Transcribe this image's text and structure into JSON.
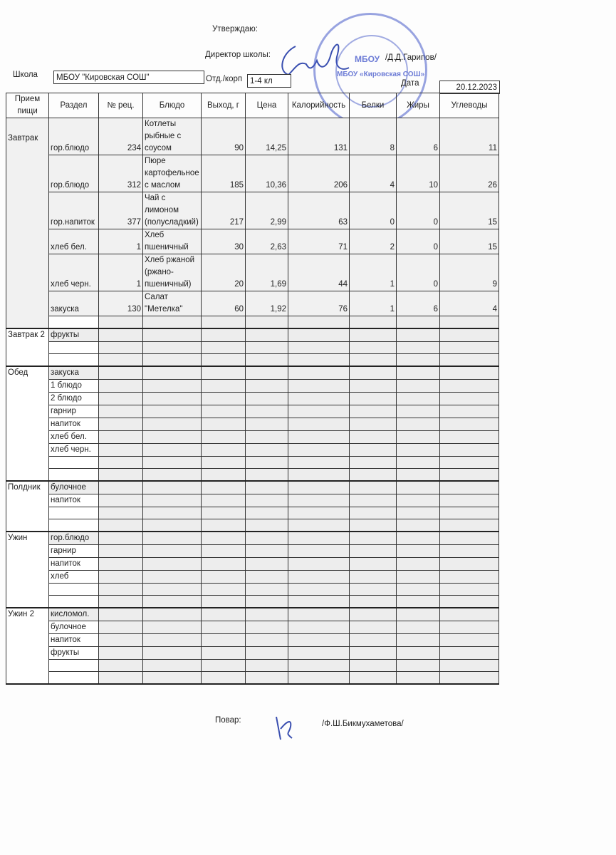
{
  "header": {
    "approve": "Утверждаю:",
    "director_label": "Директор школы:",
    "director_name": "/Д.Д.Гарипов/",
    "school_label": "Школа",
    "school_value": "МБОУ \"Кировская СОШ\"",
    "dept_label": "Отд./корп",
    "dept_value": "1-4 кл",
    "date_label": "Дата",
    "date_value": "20.12.2023",
    "stamp_text": "МБОУ «Кировская СОШ»"
  },
  "columns": [
    "Прием пищи",
    "Раздел",
    "№ рец.",
    "Блюдо",
    "Выход, г",
    "Цена",
    "Калорийность",
    "Белки",
    "Жиры",
    "Углеводы"
  ],
  "meals": [
    {
      "name": "Завтрак",
      "rows": [
        {
          "section": "гор.блюдо",
          "recipe": "234",
          "dish": "Котлеты рыбные с соусом",
          "yield": "90",
          "price": "14,25",
          "kcal": "131",
          "protein": "8",
          "fat": "6",
          "carbs": "11"
        },
        {
          "section": "гор.блюдо",
          "recipe": "312",
          "dish": "Пюре картофельное с маслом",
          "yield": "185",
          "price": "10,36",
          "kcal": "206",
          "protein": "4",
          "fat": "10",
          "carbs": "26"
        },
        {
          "section": "гор.напиток",
          "recipe": "377",
          "dish": "Чай с лимоном (полусладкий)",
          "yield": "217",
          "price": "2,99",
          "kcal": "63",
          "protein": "0",
          "fat": "0",
          "carbs": "15"
        },
        {
          "section": "хлеб бел.",
          "recipe": "1",
          "dish": "Хлеб пшеничный",
          "yield": "30",
          "price": "2,63",
          "kcal": "71",
          "protein": "2",
          "fat": "0",
          "carbs": "15"
        },
        {
          "section": "хлеб черн.",
          "recipe": "1",
          "dish": "Хлеб ржаной (ржано-пшеничный)",
          "yield": "20",
          "price": "1,69",
          "kcal": "44",
          "protein": "1",
          "fat": "0",
          "carbs": "9"
        },
        {
          "section": "закуска",
          "recipe": "130",
          "dish": "Салат \"Метелка\"",
          "yield": "60",
          "price": "1,92",
          "kcal": "76",
          "protein": "1",
          "fat": "6",
          "carbs": "4"
        },
        {}
      ]
    },
    {
      "name": "Завтрак 2",
      "rows": [
        {
          "section": "фрукты"
        },
        {},
        {}
      ]
    },
    {
      "name": "Обед",
      "rows": [
        {
          "section": "закуска"
        },
        {
          "section": "1 блюдо"
        },
        {
          "section": "2 блюдо"
        },
        {
          "section": "гарнир"
        },
        {
          "section": "напиток"
        },
        {
          "section": "хлеб бел."
        },
        {
          "section": "хлеб черн."
        },
        {},
        {}
      ]
    },
    {
      "name": "Полдник",
      "rows": [
        {
          "section": "булочное"
        },
        {
          "section": "напиток"
        },
        {},
        {}
      ]
    },
    {
      "name": "Ужин",
      "rows": [
        {
          "section": "гор.блюдо"
        },
        {
          "section": "гарнир"
        },
        {
          "section": "напиток"
        },
        {
          "section": "хлеб"
        },
        {},
        {}
      ]
    },
    {
      "name": "Ужин 2",
      "rows": [
        {
          "section": "кисломол."
        },
        {
          "section": "булочное"
        },
        {
          "section": "напиток"
        },
        {
          "section": "фрукты"
        },
        {},
        {}
      ]
    }
  ],
  "footer": {
    "cook_label": "Повар:",
    "cook_name": "/Ф.Ш.Бикмухаметова/"
  }
}
